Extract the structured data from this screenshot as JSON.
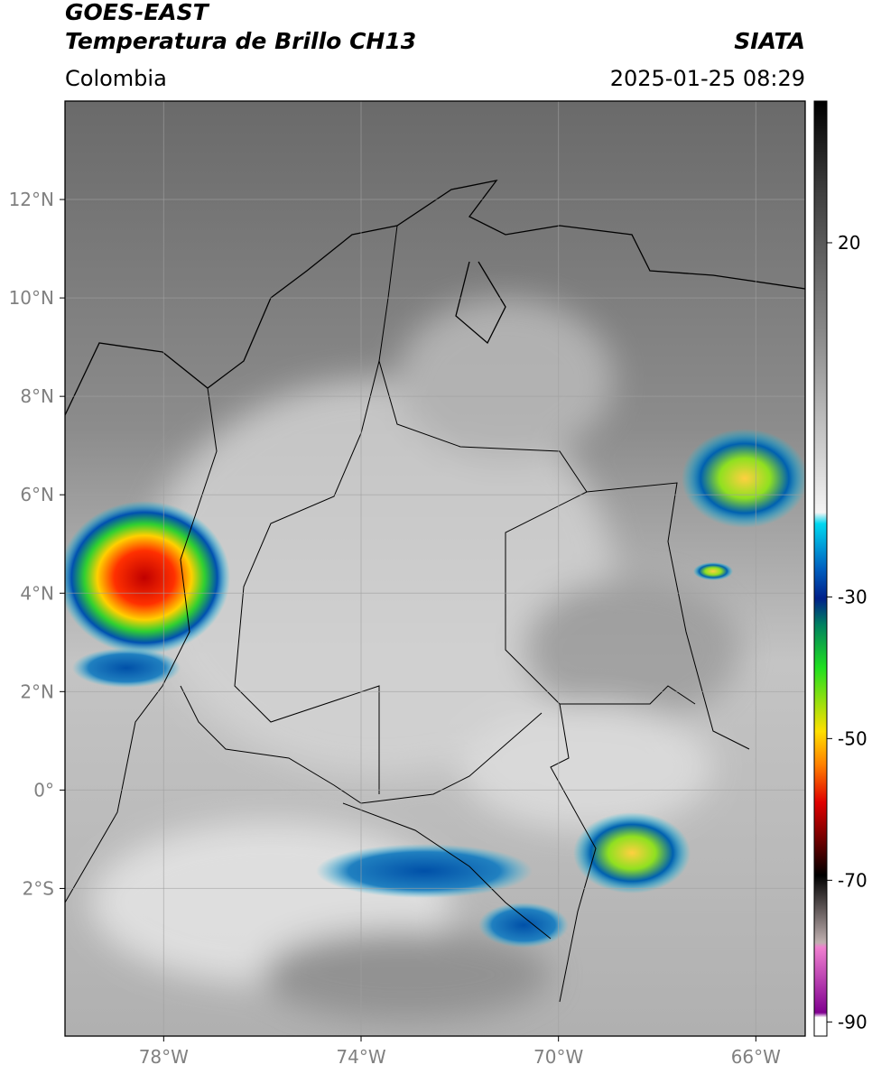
{
  "header": {
    "title": "GOES-EAST",
    "subtitle": "Temperatura de Brillo CH13",
    "region": "Colombia",
    "source": "SIATA",
    "timestamp": "2025-01-25 08:29"
  },
  "map": {
    "xlim": [
      -80,
      -65
    ],
    "ylim": [
      -5,
      14
    ],
    "xticks": [
      {
        "value": -78,
        "label": "78°W"
      },
      {
        "value": -74,
        "label": "74°W"
      },
      {
        "value": -70,
        "label": "70°W"
      },
      {
        "value": -66,
        "label": "66°W"
      }
    ],
    "yticks": [
      {
        "value": 12,
        "label": "12°N"
      },
      {
        "value": 10,
        "label": "10°N"
      },
      {
        "value": 8,
        "label": "8°N"
      },
      {
        "value": 6,
        "label": "6°N"
      },
      {
        "value": 4,
        "label": "4°N"
      },
      {
        "value": 2,
        "label": "2°N"
      },
      {
        "value": 0,
        "label": "0°"
      },
      {
        "value": -2,
        "label": "2°S"
      }
    ],
    "grid": true
  },
  "colorbar": {
    "lim": [
      -92,
      40
    ],
    "ticks": [
      20,
      -30,
      -50,
      -70,
      -90
    ]
  }
}
